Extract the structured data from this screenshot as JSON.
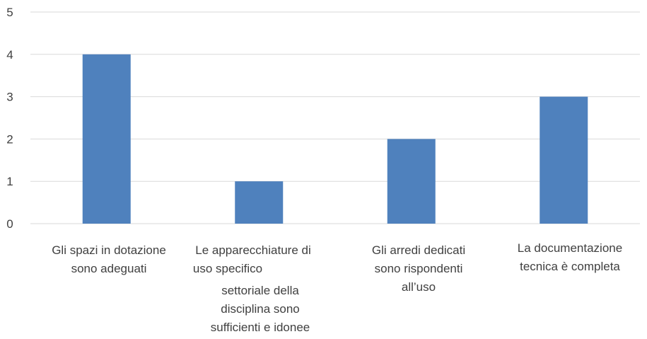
{
  "chart_data": {
    "type": "bar",
    "title": "",
    "xlabel": "",
    "ylabel": "",
    "ylim": [
      0,
      5
    ],
    "yticks": [
      0,
      1,
      2,
      3,
      4,
      5
    ],
    "grid": true,
    "legend": "none",
    "bar_color": "#4F81BD",
    "grid_color": "#D9D9D9",
    "categories": [
      "Gli spazi in dotazione sono adeguati",
      "Le apparecchiature di uso specifico settoriale della disciplina sono sufficienti e idonee",
      "Gli  arredi  dedicati sono rispondenti all’uso",
      "La documentazione tecnica è completa"
    ],
    "category_label_lines": [
      [
        "Gli spazi in dotazione",
        "sono adeguati"
      ],
      [
        "Le apparecchiature di",
        "uso specifico",
        "settoriale della",
        "disciplina sono",
        "sufficienti e idonee"
      ],
      [
        "Gli  arredi  dedicati",
        "sono rispondenti",
        "all’uso"
      ],
      [
        "La documentazione",
        "tecnica è completa"
      ]
    ],
    "values": [
      4,
      1,
      2,
      3
    ]
  }
}
